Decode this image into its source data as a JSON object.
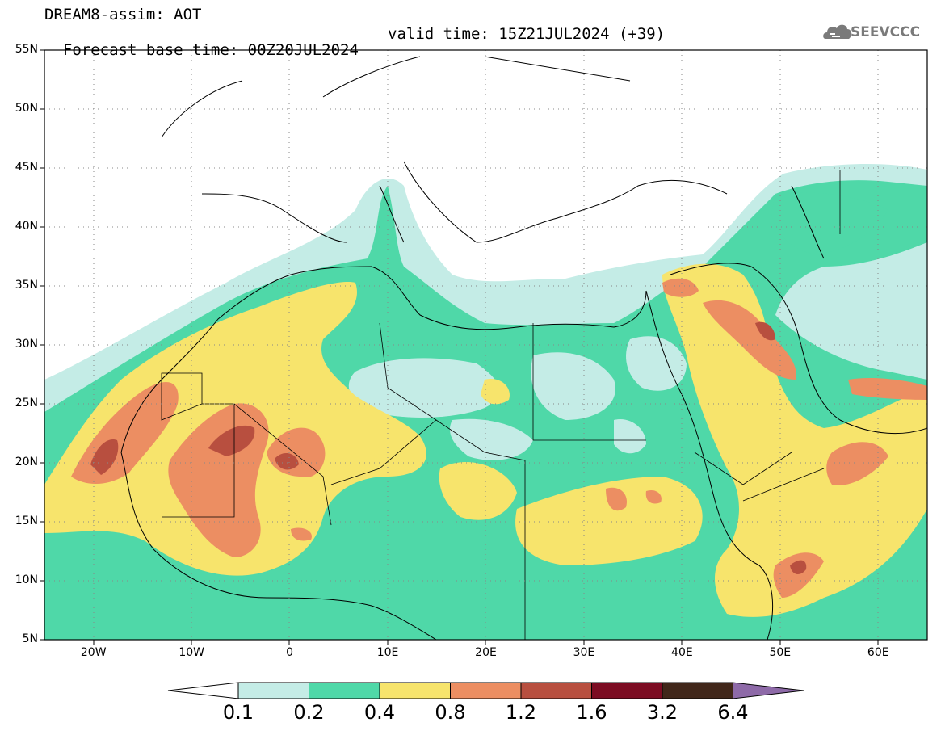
{
  "header": {
    "line1": "DREAM8-assim: AOT",
    "base_time": "Forecast base time: 00Z20JUL2024",
    "valid_time": "valid time: 15Z21JUL2024 (+39)"
  },
  "logo": {
    "text": "SEEVCCC",
    "icon": "cloud-icon"
  },
  "map": {
    "lat_labels": [
      "55N",
      "50N",
      "45N",
      "40N",
      "35N",
      "30N",
      "25N",
      "20N",
      "15N",
      "10N",
      "5N"
    ],
    "lat_values": [
      55,
      50,
      45,
      40,
      35,
      30,
      25,
      20,
      15,
      10,
      5
    ],
    "lon_labels": [
      "20W",
      "10W",
      "0",
      "10E",
      "20E",
      "30E",
      "40E",
      "50E",
      "60E"
    ],
    "lon_values": [
      -20,
      -10,
      0,
      10,
      20,
      30,
      40,
      50,
      60
    ],
    "extent": {
      "lon_min": -25,
      "lon_max": 65,
      "lat_min": 5,
      "lat_max": 55
    }
  },
  "colorbar": {
    "labels": [
      "0.1",
      "0.2",
      "0.4",
      "0.8",
      "1.2",
      "1.6",
      "3.2",
      "6.4"
    ],
    "colors": [
      "#ffffff",
      "#c4ece6",
      "#4fd8a8",
      "#f7e46c",
      "#ec8e62",
      "#b84f3f",
      "#7c0c22",
      "#41271a",
      "#8e6aa8"
    ]
  }
}
